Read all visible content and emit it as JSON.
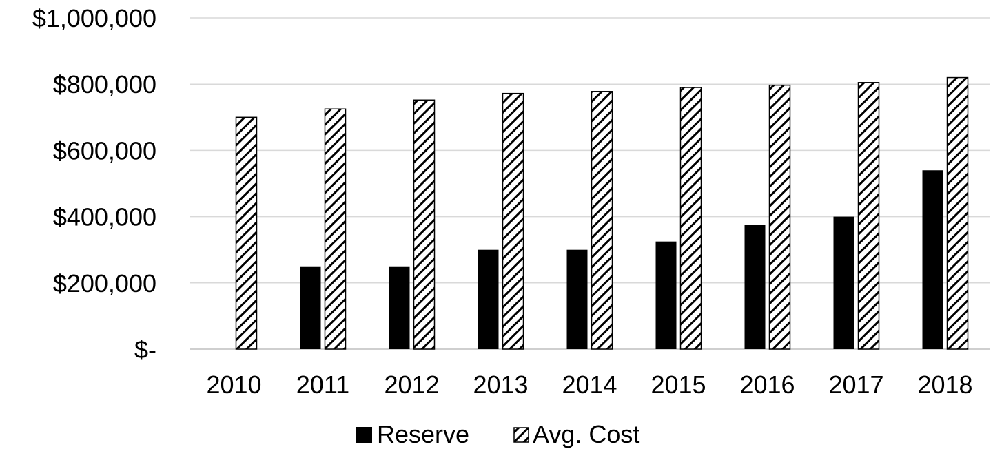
{
  "chart_data": {
    "type": "bar",
    "title": "",
    "xlabel": "",
    "ylabel": "",
    "categories": [
      "2010",
      "2011",
      "2012",
      "2013",
      "2014",
      "2015",
      "2016",
      "2017",
      "2018"
    ],
    "series": [
      {
        "name": "Reserve",
        "values": [
          0,
          250000,
          250000,
          300000,
          300000,
          325000,
          375000,
          400000,
          540000
        ],
        "fill": "solid",
        "color": "#000000"
      },
      {
        "name": "Avg. Cost",
        "values": [
          700000,
          725000,
          752000,
          772000,
          778000,
          790000,
          797000,
          805000,
          820000
        ],
        "fill": "diagonal-hatch",
        "color": "#000000"
      }
    ],
    "ylim": [
      0,
      1000000
    ],
    "yticks": [
      0,
      200000,
      400000,
      600000,
      800000,
      1000000
    ],
    "ytick_labels": [
      "$-",
      "$200,000",
      "$400,000",
      "$600,000",
      "$800,000",
      "$1,000,000"
    ],
    "grid": true,
    "gridline_color": "#d9d9d9",
    "legend_position": "bottom"
  }
}
